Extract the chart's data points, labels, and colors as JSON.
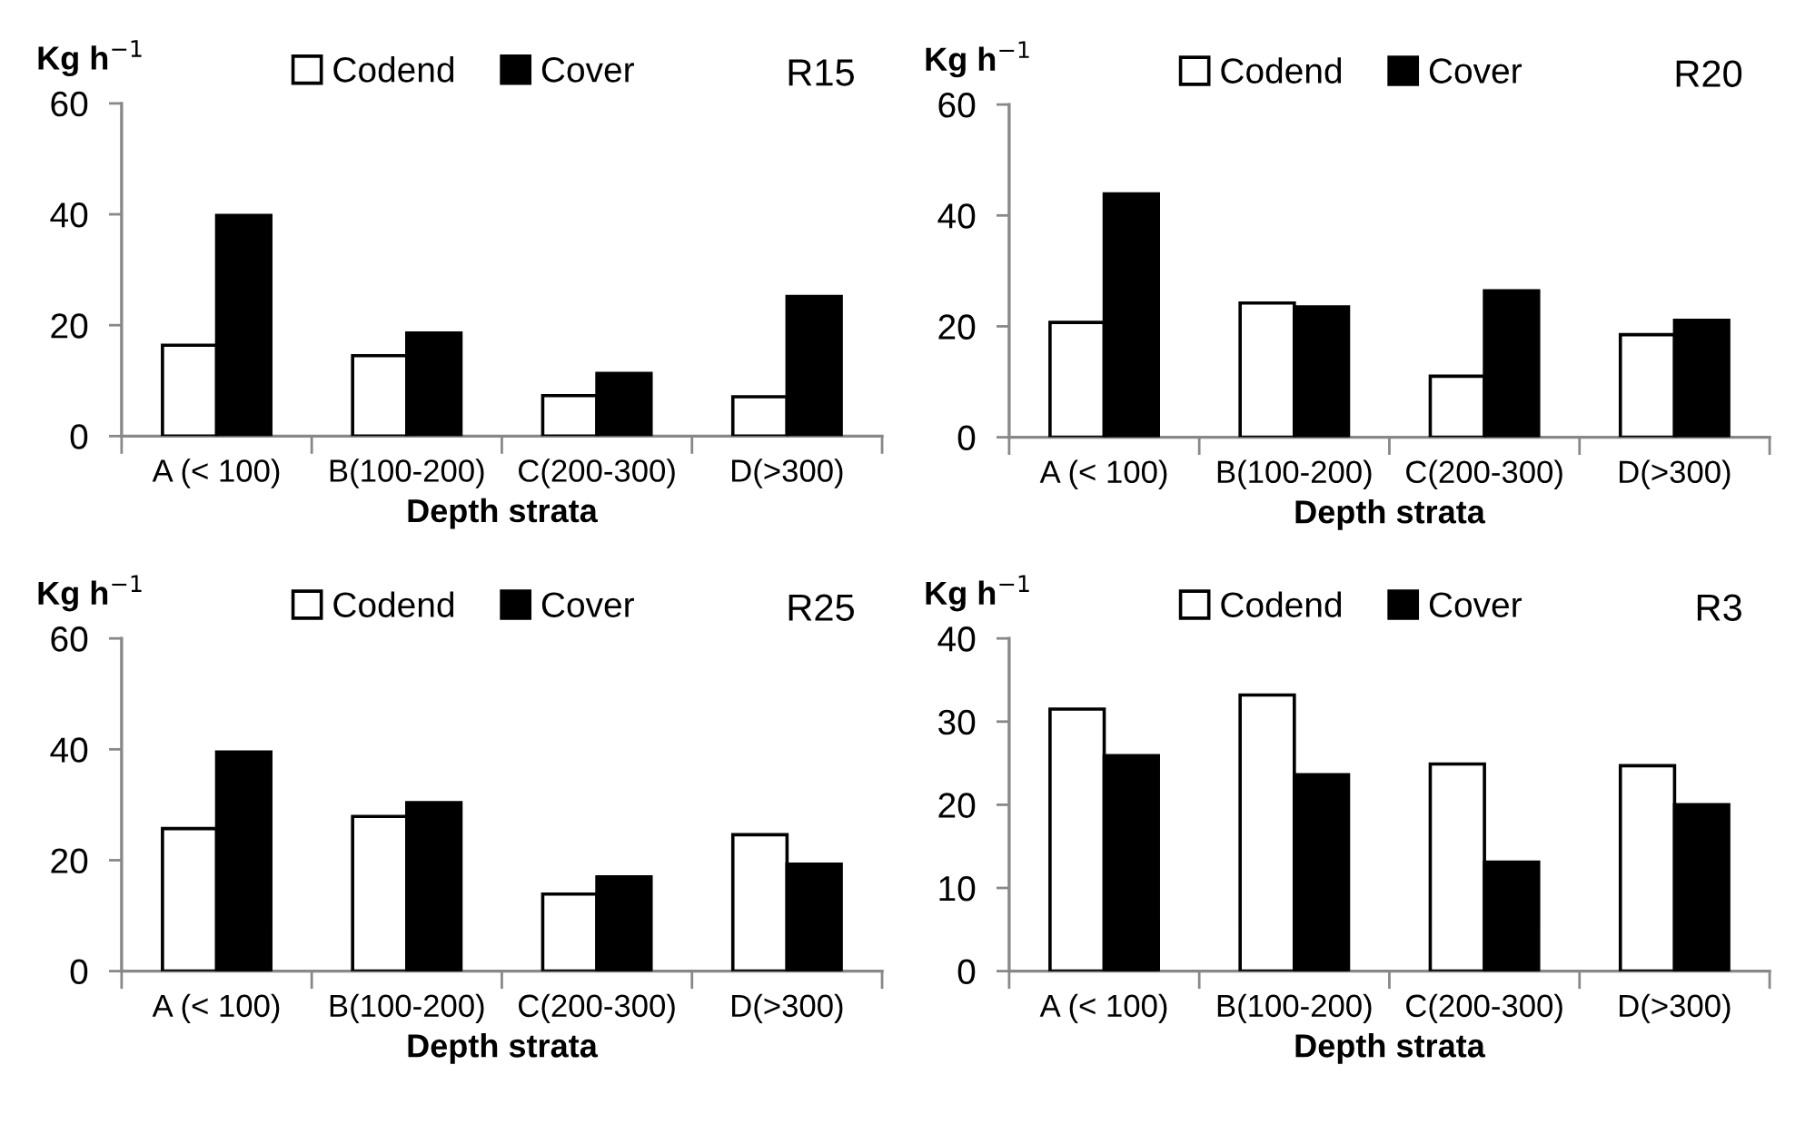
{
  "chart_data": [
    {
      "type": "bar",
      "title": "R15",
      "xlabel": "Depth strata",
      "ylabel": "Kg h$^{−1}$",
      "categories": [
        "A (< 100)",
        "B(100-200)",
        "C(200-300)",
        "D(>300)"
      ],
      "series": [
        {
          "name": "Codend",
          "color": "#ffffff",
          "values": [
            16.4,
            14.5,
            7.3,
            7.1
          ]
        },
        {
          "name": "Cover",
          "color": "#000000",
          "values": [
            39.8,
            18.6,
            11.3,
            25.2
          ]
        }
      ],
      "ylim": [
        0,
        60
      ],
      "yticks": [
        0,
        20,
        40,
        60
      ],
      "legend": "top"
    },
    {
      "type": "bar",
      "title": "R20",
      "xlabel": "Depth strata",
      "ylabel": "Kg h$^{−1}$",
      "categories": [
        "A (< 100)",
        "B(100-200)",
        "C(200-300)",
        "D(>300)"
      ],
      "series": [
        {
          "name": "Codend",
          "color": "#ffffff",
          "values": [
            20.7,
            24.2,
            11.0,
            18.5
          ]
        },
        {
          "name": "Cover",
          "color": "#000000",
          "values": [
            43.9,
            23.5,
            26.4,
            21.1
          ]
        }
      ],
      "ylim": [
        0,
        60
      ],
      "yticks": [
        0,
        20,
        40,
        60
      ],
      "legend": "top"
    },
    {
      "type": "bar",
      "title": "R25",
      "xlabel": "Depth strata",
      "ylabel": "Kg h$^{−1}$",
      "categories": [
        "A (< 100)",
        "B(100-200)",
        "C(200-300)",
        "D(>300)"
      ],
      "series": [
        {
          "name": "Codend",
          "color": "#ffffff",
          "values": [
            25.7,
            27.9,
            13.9,
            24.6
          ]
        },
        {
          "name": "Cover",
          "color": "#000000",
          "values": [
            39.5,
            30.4,
            17.0,
            19.3
          ]
        }
      ],
      "ylim": [
        0,
        60
      ],
      "yticks": [
        0,
        20,
        40,
        60
      ],
      "legend": "top"
    },
    {
      "type": "bar",
      "title": "R3",
      "xlabel": "Depth strata",
      "ylabel": "Kg h$^{−1}$",
      "categories": [
        "A (< 100)",
        "B(100-200)",
        "C(200-300)",
        "D(>300)"
      ],
      "series": [
        {
          "name": "Codend",
          "color": "#ffffff",
          "values": [
            31.5,
            33.2,
            24.9,
            24.7
          ]
        },
        {
          "name": "Cover",
          "color": "#000000",
          "values": [
            25.9,
            23.6,
            13.1,
            20.0
          ]
        }
      ],
      "ylim": [
        0,
        40
      ],
      "yticks": [
        0,
        10,
        20,
        30,
        40
      ],
      "legend": "top"
    }
  ]
}
